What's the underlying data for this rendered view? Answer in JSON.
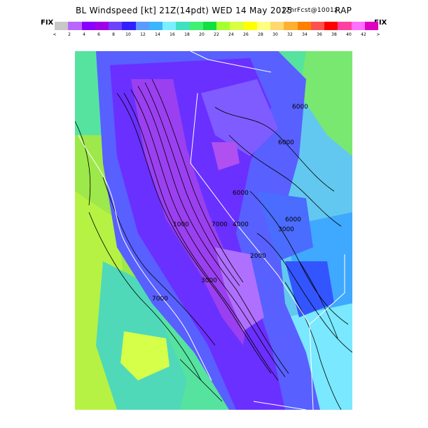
{
  "title": {
    "main": "BL Windspeed [kt] 21Z(14pdt) WED 14 May 2025",
    "forecast": "12hrFcst@1001z",
    "model": "RAP"
  },
  "colorbar": {
    "left_label": "FIX",
    "right_label": "FIX",
    "colors": [
      "#c8c8c8",
      "#b868ff",
      "#8800ff",
      "#a000e8",
      "#7040ff",
      "#3020ff",
      "#5a9bff",
      "#3cb4ff",
      "#7af0ff",
      "#40e0c0",
      "#40f070",
      "#10e040",
      "#a8ff30",
      "#d8ff40",
      "#ffff00",
      "#ffff80",
      "#ffd870",
      "#ffb030",
      "#ff8000",
      "#ff5050",
      "#ff0000",
      "#ff40a0",
      "#ff70ff",
      "#e000c0"
    ],
    "tick_labels": [
      "<",
      "2",
      "4",
      "6",
      "8",
      "10",
      "12",
      "14",
      "16",
      "18",
      "20",
      "22",
      "24",
      "26",
      "28",
      "30",
      "32",
      "34",
      "36",
      "38",
      "40",
      "42",
      ">"
    ]
  },
  "map": {
    "contour_labels": [
      "6000",
      "6000",
      "6000",
      "6000",
      "3000",
      "7000",
      "4000",
      "2000",
      "1000",
      "7000",
      "3000"
    ],
    "icons": [
      "contour-lines",
      "state-borders",
      "coastline"
    ]
  }
}
